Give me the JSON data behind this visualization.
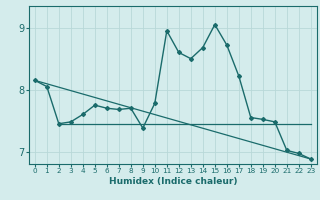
{
  "title": "",
  "xlabel": "Humidex (Indice chaleur)",
  "ylabel": "",
  "background_color": "#d4ecec",
  "grid_color": "#b8d8d8",
  "line_color": "#1a6b6b",
  "xlim": [
    -0.5,
    23.5
  ],
  "ylim": [
    6.8,
    9.35
  ],
  "yticks": [
    7,
    8,
    9
  ],
  "xticks": [
    0,
    1,
    2,
    3,
    4,
    5,
    6,
    7,
    8,
    9,
    10,
    11,
    12,
    13,
    14,
    15,
    16,
    17,
    18,
    19,
    20,
    21,
    22,
    23
  ],
  "lines": [
    {
      "x": [
        0,
        23
      ],
      "y": [
        8.15,
        6.88
      ],
      "marker": false,
      "linewidth": 0.9
    },
    {
      "x": [
        2,
        23
      ],
      "y": [
        7.45,
        7.45
      ],
      "marker": false,
      "linewidth": 0.9
    },
    {
      "x": [
        0,
        1,
        2,
        3,
        4,
        5,
        6,
        7,
        8,
        9,
        10,
        11,
        12,
        13,
        14,
        15,
        16,
        17,
        18,
        19,
        20,
        21,
        22,
        23
      ],
      "y": [
        8.15,
        8.05,
        7.45,
        7.48,
        7.6,
        7.75,
        7.7,
        7.68,
        7.7,
        7.38,
        7.78,
        8.95,
        8.6,
        8.5,
        8.68,
        9.05,
        8.72,
        8.22,
        7.55,
        7.52,
        7.48,
        7.02,
        6.97,
        6.88
      ],
      "marker": true,
      "linewidth": 1.0
    }
  ]
}
